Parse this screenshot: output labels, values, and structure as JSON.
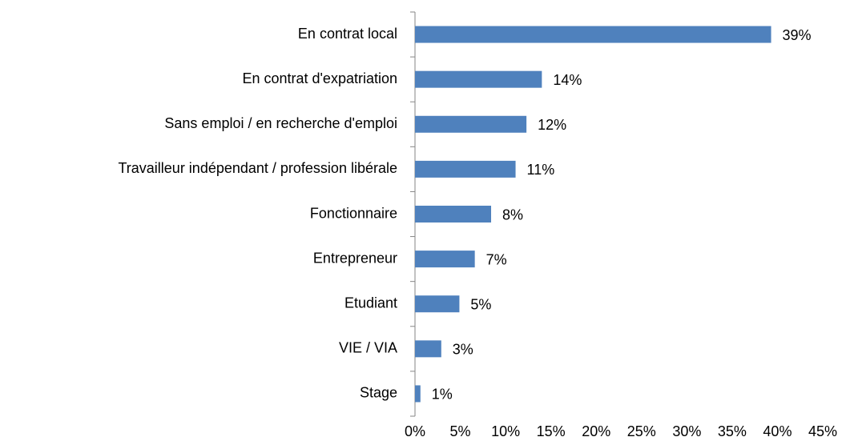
{
  "chart_data": {
    "type": "bar",
    "orientation": "horizontal",
    "color": "#4f81bd",
    "categories": [
      "En contrat local",
      "En contrat d'expatriation",
      "Sans emploi / en recherche d'emploi",
      "Travailleur indépendant / profession libérale",
      "Fonctionnaire",
      "Entrepreneur",
      "Etudiant",
      "VIE / VIA",
      "Stage"
    ],
    "values": [
      39.3,
      14.0,
      12.3,
      11.1,
      8.4,
      6.6,
      4.9,
      2.9,
      0.6
    ],
    "value_labels": [
      "39%",
      "14%",
      "12%",
      "11%",
      "8%",
      "7%",
      "5%",
      "3%",
      "1%"
    ],
    "xlim": [
      0,
      45
    ],
    "xticks": [
      {
        "value": 0,
        "label": "0%"
      },
      {
        "value": 5,
        "label": "5%"
      },
      {
        "value": 10,
        "label": "10%"
      },
      {
        "value": 15,
        "label": "15%"
      },
      {
        "value": 20,
        "label": "20%"
      },
      {
        "value": 25,
        "label": "25%"
      },
      {
        "value": 30,
        "label": "30%"
      },
      {
        "value": 35,
        "label": "35%"
      },
      {
        "value": 40,
        "label": "40%"
      },
      {
        "value": 45,
        "label": "45%"
      }
    ],
    "grid": false
  }
}
